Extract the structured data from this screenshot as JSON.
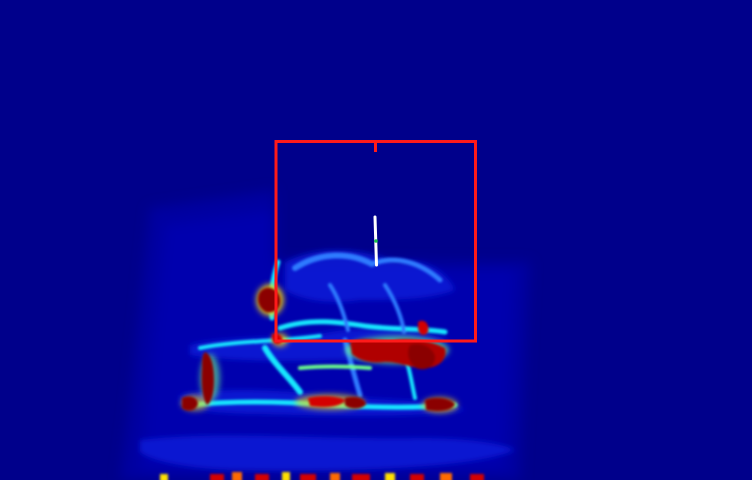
{
  "image": {
    "kind": "depth-heatmap-visualization",
    "colormap": "jet",
    "background_color": "#00008b"
  },
  "colors": {
    "background": "#00008b",
    "dark_blue": "#0000b0",
    "blue": "#0a1fd8",
    "light_blue": "#2e7cff",
    "cyan": "#18e8ff",
    "green": "#6bff8a",
    "yellow": "#ffe000",
    "orange": "#ff6a00",
    "red": "#d40000",
    "dark_red": "#8b0000",
    "roi_box": "#ff1a1a",
    "marker_line": "#ffffff",
    "marker_dot": "#19c24a"
  },
  "overlays": {
    "roi_box": {
      "shape": "rectangle",
      "color_name": "red"
    },
    "center_tick": {
      "shape": "tick",
      "color_name": "red"
    },
    "orientation_marker": {
      "shape": "line",
      "color_name": "white"
    },
    "center_point": {
      "shape": "dot",
      "color_name": "green"
    }
  }
}
